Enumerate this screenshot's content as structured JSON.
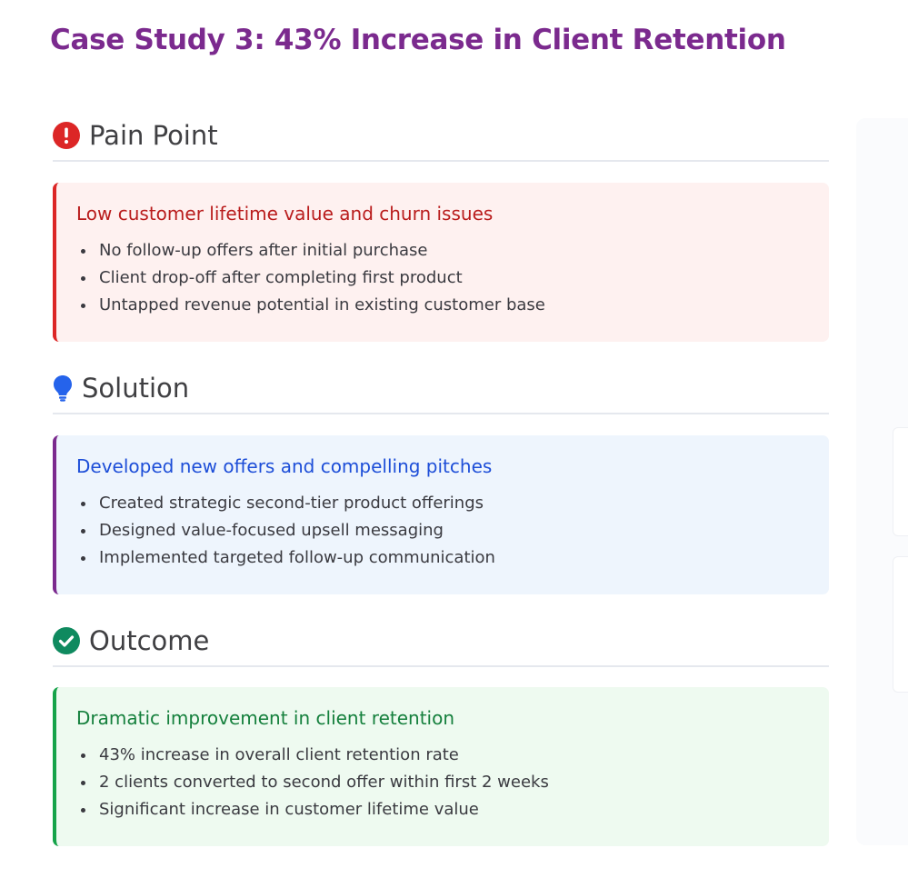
{
  "title": "Case Study 3: 43% Increase in Client Retention",
  "colors": {
    "title": "#7b2a8e",
    "pain_accent": "#dc2626",
    "solution_accent": "#7b2a8e",
    "solution_title": "#1d4ed8",
    "outcome_accent": "#16a34a"
  },
  "sections": {
    "pain": {
      "heading": "Pain Point",
      "icon": "exclamation-circle-icon",
      "card_title": "Low customer lifetime value and churn issues",
      "items": [
        "No follow-up offers after initial purchase",
        "Client drop-off after completing first product",
        "Untapped revenue potential in existing customer base"
      ]
    },
    "solution": {
      "heading": "Solution",
      "icon": "lightbulb-icon",
      "card_title": "Developed new offers and compelling pitches",
      "items": [
        "Created strategic second-tier product offerings",
        "Designed value-focused upsell messaging",
        "Implemented targeted follow-up communication"
      ]
    },
    "outcome": {
      "heading": "Outcome",
      "icon": "check-circle-icon",
      "card_title": "Dramatic improvement in client retention",
      "items": [
        "43% increase in overall client retention rate",
        "2 clients converted to second offer within first 2 weeks",
        "Significant increase in customer lifetime value"
      ]
    }
  }
}
